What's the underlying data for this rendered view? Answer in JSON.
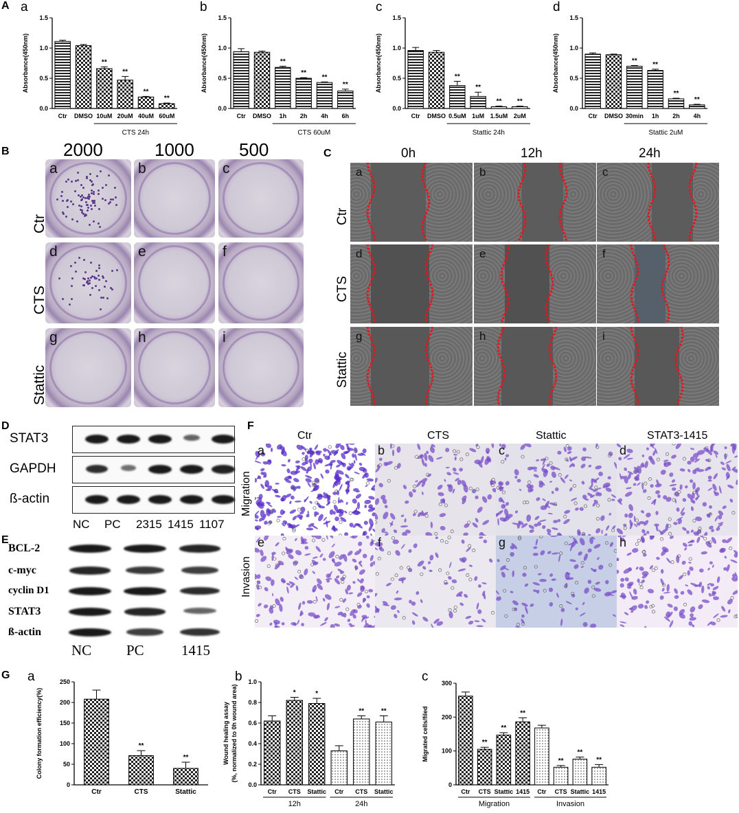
{
  "panels": {
    "A": "A",
    "B": "B",
    "C": "C",
    "D": "D",
    "E": "E",
    "F": "F",
    "G": "G"
  },
  "panelA": {
    "ylabel": "Absorbance(450nm)",
    "yticks": [
      "0.0",
      "0.5",
      "1.0",
      "1.5"
    ],
    "sig": "**"
  },
  "chart_data": [
    {
      "type": "bar",
      "panel": "A-a",
      "categories": [
        "Ctr",
        "DMSO",
        "10uM",
        "20uM",
        "40uM",
        "60uM"
      ],
      "values": [
        1.11,
        1.04,
        0.66,
        0.47,
        0.19,
        0.08
      ],
      "errors": [
        0.02,
        0.02,
        0.03,
        0.06,
        0.01,
        0.01
      ],
      "significance": [
        "",
        "",
        "**",
        "**",
        "**",
        "**"
      ],
      "ylabel": "Absorbance(450nm)",
      "xlabel": "CTS 24h",
      "ylim": [
        0,
        1.5
      ]
    },
    {
      "type": "bar",
      "panel": "A-b",
      "categories": [
        "Ctr",
        "DMSO",
        "1h",
        "2h",
        "4h",
        "6h"
      ],
      "values": [
        0.94,
        0.93,
        0.68,
        0.5,
        0.43,
        0.29
      ],
      "errors": [
        0.05,
        0.02,
        0.02,
        0.01,
        0.01,
        0.03
      ],
      "significance": [
        "",
        "",
        "**",
        "**",
        "**",
        "**"
      ],
      "ylabel": "Absorbance(450nm)",
      "xlabel": "CTS 60uM",
      "ylim": [
        0,
        1.5
      ]
    },
    {
      "type": "bar",
      "panel": "A-c",
      "categories": [
        "Ctr",
        "DMSO",
        "0.5uM",
        "1uM",
        "1.5uM",
        "2uM"
      ],
      "values": [
        0.96,
        0.93,
        0.38,
        0.2,
        0.03,
        0.03
      ],
      "errors": [
        0.05,
        0.03,
        0.07,
        0.07,
        0.01,
        0.01
      ],
      "significance": [
        "",
        "",
        "**",
        "**",
        "**",
        "**"
      ],
      "ylabel": "Absorbance(450nm)",
      "xlabel": "Stattic 24h",
      "ylim": [
        0,
        1.5
      ]
    },
    {
      "type": "bar",
      "panel": "A-d",
      "categories": [
        "Ctr",
        "DMSO",
        "30min",
        "1h",
        "2h",
        "4h"
      ],
      "values": [
        0.9,
        0.89,
        0.7,
        0.63,
        0.16,
        0.06
      ],
      "errors": [
        0.02,
        0.01,
        0.01,
        0.02,
        0.01,
        0.01
      ],
      "significance": [
        "",
        "",
        "**",
        "**",
        "**",
        "**"
      ],
      "ylabel": "Absorbance(450nm)",
      "xlabel": "Stattic 2uM",
      "ylim": [
        0,
        1.5
      ]
    },
    {
      "type": "bar",
      "panel": "G-a",
      "categories": [
        "Ctr",
        "CTS",
        "Stattic"
      ],
      "values": [
        208,
        71,
        40
      ],
      "errors": [
        22,
        12,
        15
      ],
      "significance": [
        "",
        "**",
        "**"
      ],
      "ylabel": "Colony formation efficiency(%)",
      "ylim": [
        0,
        250
      ],
      "yticks": [
        "0",
        "50",
        "100",
        "150",
        "200",
        "250"
      ]
    },
    {
      "type": "bar",
      "panel": "G-b",
      "categories": [
        "Ctr",
        "CTS",
        "Stattic",
        "Ctr",
        "CTS",
        "Stattic"
      ],
      "groups": [
        "12h",
        "24h"
      ],
      "values": [
        0.62,
        0.82,
        0.79,
        0.33,
        0.64,
        0.61
      ],
      "errors": [
        0.05,
        0.03,
        0.05,
        0.05,
        0.03,
        0.06
      ],
      "significance": [
        "",
        "*",
        "*",
        "",
        "**",
        "**"
      ],
      "ylabel": "Wound healing assay\n(%, normalized to 0h wound area)",
      "ylim": [
        0,
        1.0
      ],
      "yticks": [
        "0.0",
        "0.2",
        "0.4",
        "0.6",
        "0.8",
        "1.0"
      ]
    },
    {
      "type": "bar",
      "panel": "G-c",
      "categories": [
        "Ctr",
        "CTS",
        "Stattic",
        "1415",
        "Ctr",
        "CTS",
        "Stattic",
        "1415"
      ],
      "groups": [
        "Migration",
        "Invasion"
      ],
      "values": [
        262,
        105,
        147,
        186,
        168,
        52,
        76,
        52
      ],
      "errors": [
        12,
        6,
        7,
        12,
        8,
        5,
        6,
        8
      ],
      "significance": [
        "",
        "**",
        "**",
        "**",
        "",
        "**",
        "**",
        "**"
      ],
      "ylabel": "Migrated cells/filed",
      "ylim": [
        0,
        300
      ],
      "yticks": [
        "0",
        "100",
        "200",
        "300"
      ]
    }
  ],
  "panelB": {
    "columns": [
      "2000",
      "1000",
      "500"
    ],
    "rows": [
      "Ctr",
      "CTS",
      "Stattic"
    ],
    "letters": [
      "a",
      "b",
      "c",
      "d",
      "e",
      "f",
      "g",
      "h",
      "i"
    ]
  },
  "panelC": {
    "columns": [
      "0h",
      "12h",
      "24h"
    ],
    "rows": [
      "Ctr",
      "CTS",
      "Stattic"
    ],
    "letters": [
      "a",
      "b",
      "c",
      "d",
      "e",
      "f",
      "g",
      "h",
      "i"
    ]
  },
  "panelD": {
    "rows": [
      "STAT3",
      "GAPDH",
      "ß-actin"
    ],
    "lanes": [
      "NC",
      "PC",
      "2315",
      "1415",
      "1107"
    ]
  },
  "panelE": {
    "rows": [
      "BCL-2",
      "c-myc",
      "cyclin D1",
      "STAT3",
      "ß-actin"
    ],
    "lanes": [
      "NC",
      "PC",
      "1415"
    ]
  },
  "panelF": {
    "columns": [
      "Ctr",
      "CTS",
      "Stattic",
      "STAT3-1415"
    ],
    "rows": [
      "Migration",
      "Invasion"
    ],
    "letters": [
      "a",
      "b",
      "c",
      "d",
      "e",
      "f",
      "g",
      "h"
    ]
  },
  "subletters": {
    "a": "a",
    "b": "b",
    "c": "c",
    "d": "d"
  }
}
